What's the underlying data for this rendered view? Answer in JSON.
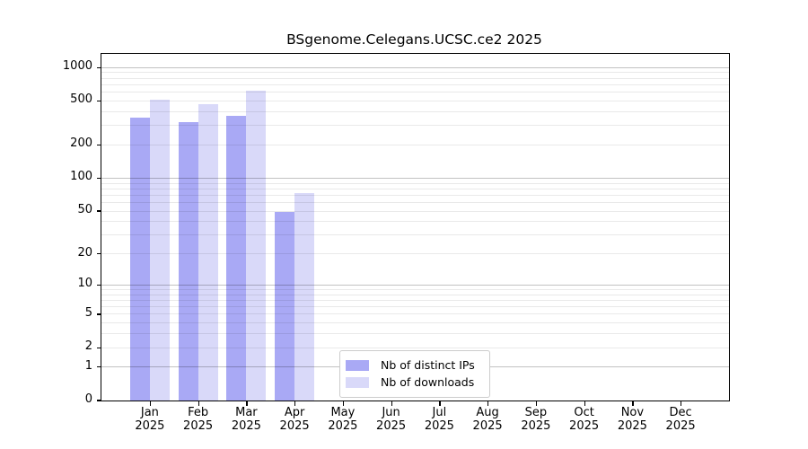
{
  "chart_data": {
    "type": "bar",
    "title": "BSgenome.Celegans.UCSC.ce2 2025",
    "categories": [
      "Jan 2025",
      "Feb 2025",
      "Mar 2025",
      "Apr 2025",
      "May 2025",
      "Jun 2025",
      "Jul 2025",
      "Aug 2025",
      "Sep 2025",
      "Oct 2025",
      "Nov 2025",
      "Dec 2025"
    ],
    "series": [
      {
        "name": "Nb of distinct IPs",
        "color": "#a9a9f5",
        "values": [
          355,
          325,
          365,
          49,
          null,
          null,
          null,
          null,
          null,
          null,
          null,
          null
        ]
      },
      {
        "name": "Nb of downloads",
        "color": "#d9d9f9",
        "values": [
          515,
          472,
          617,
          73,
          null,
          null,
          null,
          null,
          null,
          null,
          null,
          null
        ]
      }
    ],
    "xlabel": "",
    "ylabel": "",
    "y_axis": {
      "scale": "log1p",
      "tick_labels": [
        0,
        1,
        2,
        5,
        10,
        20,
        50,
        100,
        200,
        500,
        1000
      ],
      "ylim": [
        0,
        1330
      ],
      "grid": true,
      "major_gridlines": [
        1,
        10,
        100,
        1000
      ],
      "minor_gridlines": [
        2,
        3,
        4,
        5,
        6,
        7,
        8,
        9,
        20,
        30,
        40,
        50,
        60,
        70,
        80,
        90,
        200,
        300,
        400,
        500,
        600,
        700,
        800,
        900
      ]
    },
    "legend": {
      "position": "lower-center",
      "entries": [
        "Nb of distinct IPs",
        "Nb of downloads"
      ]
    }
  },
  "colors": {
    "axis": "#000000",
    "grid_major": "rgba(0,0,0,0.24)",
    "grid_minor": "rgba(0,0,0,0.085)",
    "legend_border": "#cccccc",
    "background": "#ffffff"
  }
}
